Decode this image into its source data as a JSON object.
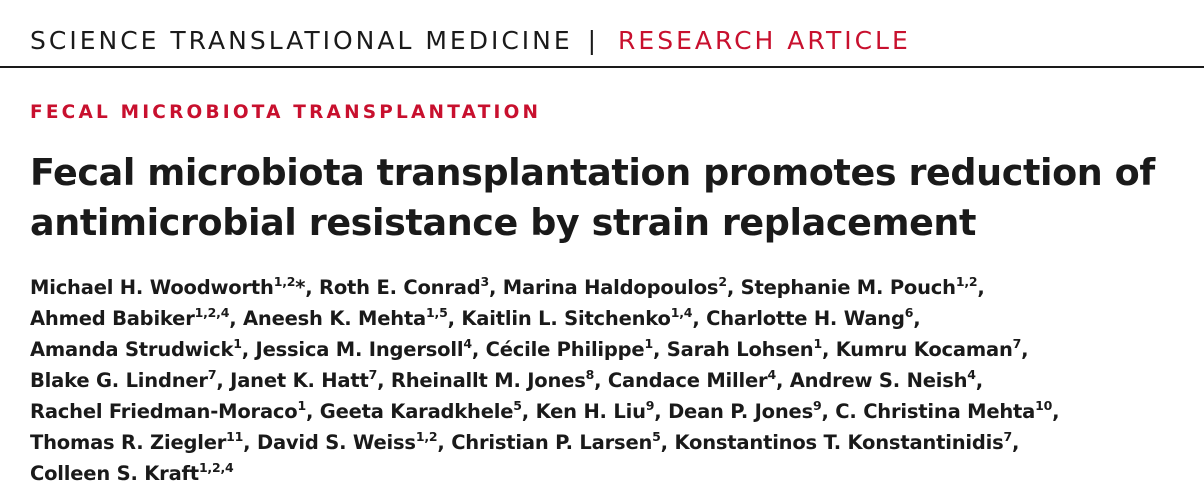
{
  "header": {
    "journal": "SCIENCE TRANSLATIONAL MEDICINE",
    "separator": "|",
    "article_type": "RESEARCH ARTICLE"
  },
  "section": "FECAL MICROBIOTA TRANSPLANTATION",
  "title_lines": [
    "Fecal microbiota transplantation promotes reduction of",
    "antimicrobial resistance by strain replacement"
  ],
  "authors": [
    {
      "name": "Michael H. Woodworth",
      "aff": "1,2",
      "corresponding": "*"
    },
    {
      "name": "Roth E. Conrad",
      "aff": "3"
    },
    {
      "name": "Marina Haldopoulos",
      "aff": "2"
    },
    {
      "name": "Stephanie M. Pouch",
      "aff": "1,2"
    },
    {
      "name": "Ahmed Babiker",
      "aff": "1,2,4"
    },
    {
      "name": "Aneesh K. Mehta",
      "aff": "1,5"
    },
    {
      "name": "Kaitlin L. Sitchenko",
      "aff": "1,4"
    },
    {
      "name": "Charlotte H. Wang",
      "aff": "6"
    },
    {
      "name": "Amanda Strudwick",
      "aff": "1"
    },
    {
      "name": "Jessica M. Ingersoll",
      "aff": "4"
    },
    {
      "name": "Cécile Philippe",
      "aff": "1"
    },
    {
      "name": "Sarah Lohsen",
      "aff": "1"
    },
    {
      "name": "Kumru Kocaman",
      "aff": "7"
    },
    {
      "name": "Blake G. Lindner",
      "aff": "7"
    },
    {
      "name": "Janet K. Hatt",
      "aff": "7"
    },
    {
      "name": "Rheinallt M. Jones",
      "aff": "8"
    },
    {
      "name": "Candace Miller",
      "aff": "4"
    },
    {
      "name": "Andrew S. Neish",
      "aff": "4"
    },
    {
      "name": "Rachel Friedman-Moraco",
      "aff": "1"
    },
    {
      "name": "Geeta Karadkhele",
      "aff": "5"
    },
    {
      "name": "Ken H. Liu",
      "aff": "9"
    },
    {
      "name": "Dean P. Jones",
      "aff": "9"
    },
    {
      "name": "C. Christina Mehta",
      "aff": "10"
    },
    {
      "name": "Thomas R. Ziegler",
      "aff": "11"
    },
    {
      "name": "David S. Weiss",
      "aff": "1,2"
    },
    {
      "name": "Christian P. Larsen",
      "aff": "5"
    },
    {
      "name": "Konstantinos T. Konstantinidis",
      "aff": "7"
    },
    {
      "name": "Colleen S. Kraft",
      "aff": "1,2,4"
    }
  ],
  "author_line_breaks_after": [
    3,
    7,
    12,
    17,
    22,
    26
  ]
}
